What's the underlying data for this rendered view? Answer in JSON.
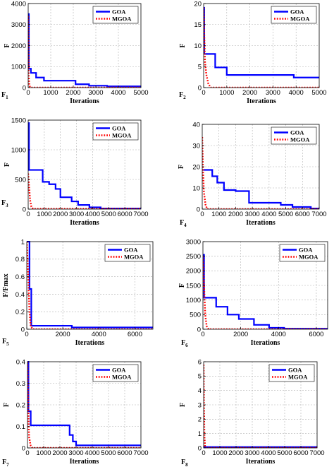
{
  "colors": {
    "goa": "#0000ff",
    "mgoa": "#ff0000"
  },
  "chart_data": [
    {
      "type": "line",
      "panel_label": "F",
      "panel_sub": "1",
      "xlabel": "Iterations",
      "ylabel": "F",
      "xlim": [
        0,
        5000
      ],
      "ylim": [
        0,
        4000
      ],
      "xticks": [
        0,
        1000,
        2000,
        3000,
        4000,
        5000
      ],
      "yticks": [
        0,
        1000,
        2000,
        3000,
        4000
      ],
      "grid": true,
      "legend_position": "top-right",
      "series": [
        {
          "name": "GOA",
          "style": "solid",
          "points": [
            [
              0,
              3500
            ],
            [
              30,
              3500
            ],
            [
              30,
              900
            ],
            [
              120,
              900
            ],
            [
              120,
              700
            ],
            [
              350,
              700
            ],
            [
              350,
              480
            ],
            [
              700,
              480
            ],
            [
              700,
              330
            ],
            [
              2100,
              330
            ],
            [
              2100,
              160
            ],
            [
              2700,
              160
            ],
            [
              2700,
              90
            ],
            [
              3500,
              90
            ],
            [
              3500,
              60
            ],
            [
              5000,
              60
            ]
          ]
        },
        {
          "name": "MGOA",
          "style": "dotted",
          "points": [
            [
              0,
              3400
            ],
            [
              20,
              600
            ],
            [
              50,
              150
            ],
            [
              80,
              30
            ],
            [
              120,
              0
            ],
            [
              5000,
              0
            ]
          ]
        }
      ]
    },
    {
      "type": "line",
      "panel_label": "F",
      "panel_sub": "2",
      "xlabel": "Iterations",
      "ylabel": "F",
      "xlim": [
        0,
        5000
      ],
      "ylim": [
        0,
        20
      ],
      "xticks": [
        0,
        1000,
        2000,
        3000,
        4000,
        5000
      ],
      "yticks": [
        0,
        5,
        10,
        15,
        20
      ],
      "grid": true,
      "legend_position": "top-right",
      "series": [
        {
          "name": "GOA",
          "style": "solid",
          "points": [
            [
              0,
              19
            ],
            [
              25,
              19
            ],
            [
              25,
              8
            ],
            [
              500,
              8
            ],
            [
              500,
              4.8
            ],
            [
              1000,
              4.8
            ],
            [
              1000,
              3
            ],
            [
              3900,
              3
            ],
            [
              3900,
              2.4
            ],
            [
              5000,
              2.4
            ]
          ]
        },
        {
          "name": "MGOA",
          "style": "dotted",
          "points": [
            [
              0,
              19
            ],
            [
              30,
              12
            ],
            [
              60,
              6
            ],
            [
              120,
              3
            ],
            [
              200,
              1
            ],
            [
              300,
              0
            ],
            [
              5000,
              0
            ]
          ]
        }
      ]
    },
    {
      "type": "line",
      "panel_label": "F",
      "panel_sub": "3",
      "xlabel": "Iterations",
      "ylabel": "F",
      "xlim": [
        0,
        7000
      ],
      "ylim": [
        0,
        1500
      ],
      "xticks": [
        0,
        1000,
        2000,
        3000,
        4000,
        5000,
        6000,
        7000
      ],
      "yticks": [
        0,
        500,
        1000,
        1500
      ],
      "grid": true,
      "legend_position": "top-right",
      "series": [
        {
          "name": "GOA",
          "style": "solid",
          "points": [
            [
              0,
              1450
            ],
            [
              50,
              1450
            ],
            [
              50,
              660
            ],
            [
              900,
              660
            ],
            [
              900,
              460
            ],
            [
              1300,
              460
            ],
            [
              1300,
              420
            ],
            [
              1700,
              420
            ],
            [
              1700,
              340
            ],
            [
              2000,
              340
            ],
            [
              2000,
              200
            ],
            [
              2700,
              200
            ],
            [
              2700,
              130
            ],
            [
              3100,
              130
            ],
            [
              3100,
              70
            ],
            [
              3800,
              70
            ],
            [
              3800,
              30
            ],
            [
              4500,
              30
            ],
            [
              4500,
              10
            ],
            [
              7000,
              10
            ]
          ]
        },
        {
          "name": "MGOA",
          "style": "dotted",
          "points": [
            [
              0,
              600
            ],
            [
              50,
              400
            ],
            [
              120,
              150
            ],
            [
              200,
              40
            ],
            [
              300,
              5
            ],
            [
              7000,
              5
            ]
          ]
        }
      ]
    },
    {
      "type": "line",
      "panel_label": "F",
      "panel_sub": "4",
      "xlabel": "Iterations",
      "ylabel": "F",
      "xlim": [
        0,
        7000
      ],
      "ylim": [
        0,
        40
      ],
      "xticks": [
        0,
        1000,
        2000,
        3000,
        4000,
        5000,
        6000,
        7000
      ],
      "yticks": [
        0,
        10,
        20,
        30,
        40
      ],
      "grid": true,
      "legend_position": "top-right",
      "series": [
        {
          "name": "GOA",
          "style": "solid",
          "points": [
            [
              0,
              18.5
            ],
            [
              600,
              18.5
            ],
            [
              600,
              15.5
            ],
            [
              900,
              15.5
            ],
            [
              900,
              12.5
            ],
            [
              1300,
              12.5
            ],
            [
              1300,
              9
            ],
            [
              2000,
              9
            ],
            [
              2000,
              8.5
            ],
            [
              2800,
              8.5
            ],
            [
              2800,
              3
            ],
            [
              4700,
              3
            ],
            [
              4700,
              2
            ],
            [
              5400,
              2
            ],
            [
              5400,
              1
            ],
            [
              6500,
              1
            ],
            [
              6500,
              0.3
            ],
            [
              7000,
              0.3
            ]
          ]
        },
        {
          "name": "MGOA",
          "style": "dotted",
          "points": [
            [
              0,
              34
            ],
            [
              40,
              20
            ],
            [
              100,
              8
            ],
            [
              200,
              2
            ],
            [
              300,
              0
            ],
            [
              7000,
              0
            ]
          ]
        }
      ]
    },
    {
      "type": "line",
      "panel_label": "F",
      "panel_sub": "5",
      "xlabel": "Iterations",
      "ylabel": "F/Fmax",
      "xlim": [
        0,
        7000
      ],
      "ylim": [
        0,
        1
      ],
      "xticks": [
        0,
        2000,
        4000,
        6000
      ],
      "yticks": [
        0,
        0.2,
        0.4,
        0.6,
        0.8,
        1
      ],
      "grid": true,
      "legend_position": "top-right",
      "series": [
        {
          "name": "GOA",
          "style": "solid",
          "points": [
            [
              0,
              1
            ],
            [
              150,
              1
            ],
            [
              150,
              0.46
            ],
            [
              250,
              0.46
            ],
            [
              250,
              0.04
            ],
            [
              2500,
              0.04
            ],
            [
              2500,
              0.02
            ],
            [
              7000,
              0.02
            ]
          ]
        },
        {
          "name": "MGOA",
          "style": "dotted",
          "points": [
            [
              0,
              1
            ],
            [
              80,
              0.6
            ],
            [
              150,
              0.2
            ],
            [
              220,
              0.03
            ],
            [
              350,
              0
            ],
            [
              7000,
              0
            ]
          ]
        }
      ]
    },
    {
      "type": "line",
      "panel_label": "F",
      "panel_sub": "6",
      "xlabel": "Iterations",
      "ylabel": "F",
      "xlim": [
        0,
        6600
      ],
      "ylim": [
        0,
        3000
      ],
      "xticks": [
        0,
        2000,
        4000,
        6000
      ],
      "yticks": [
        0,
        500,
        1000,
        1500,
        2000,
        2500,
        3000
      ],
      "grid": true,
      "legend_position": "top-right",
      "series": [
        {
          "name": "GOA",
          "style": "solid",
          "points": [
            [
              0,
              2550
            ],
            [
              60,
              2550
            ],
            [
              60,
              1080
            ],
            [
              700,
              1080
            ],
            [
              700,
              770
            ],
            [
              1300,
              770
            ],
            [
              1300,
              500
            ],
            [
              1900,
              500
            ],
            [
              1900,
              350
            ],
            [
              2700,
              350
            ],
            [
              2700,
              150
            ],
            [
              3500,
              150
            ],
            [
              3500,
              50
            ],
            [
              4300,
              50
            ],
            [
              4300,
              20
            ],
            [
              6600,
              20
            ]
          ]
        },
        {
          "name": "MGOA",
          "style": "dotted",
          "points": [
            [
              0,
              2500
            ],
            [
              60,
              1500
            ],
            [
              120,
              500
            ],
            [
              200,
              100
            ],
            [
              300,
              0
            ],
            [
              6600,
              0
            ]
          ]
        }
      ]
    },
    {
      "type": "line",
      "panel_label": "F",
      "panel_sub": "7",
      "xlabel": "Iterations",
      "ylabel": "F",
      "xlim": [
        0,
        7000
      ],
      "ylim": [
        0,
        0.4
      ],
      "xticks": [
        0,
        1000,
        2000,
        3000,
        4000,
        5000,
        6000,
        7000
      ],
      "yticks": [
        0,
        0.1,
        0.2,
        0.3,
        0.4
      ],
      "grid": true,
      "legend_position": "top-right",
      "series": [
        {
          "name": "GOA",
          "style": "solid",
          "points": [
            [
              0,
              0.4
            ],
            [
              60,
              0.4
            ],
            [
              60,
              0.17
            ],
            [
              200,
              0.17
            ],
            [
              200,
              0.105
            ],
            [
              2600,
              0.105
            ],
            [
              2600,
              0.06
            ],
            [
              2800,
              0.06
            ],
            [
              2800,
              0.03
            ],
            [
              3000,
              0.03
            ],
            [
              3000,
              0.012
            ],
            [
              7000,
              0.012
            ]
          ]
        },
        {
          "name": "MGOA",
          "style": "dotted",
          "points": [
            [
              0,
              0.4
            ],
            [
              40,
              0.2
            ],
            [
              100,
              0.05
            ],
            [
              200,
              0.01
            ],
            [
              300,
              0
            ],
            [
              7000,
              0
            ]
          ]
        }
      ]
    },
    {
      "type": "line",
      "panel_label": "F",
      "panel_sub": "8",
      "xlabel": "Iterations",
      "ylabel": "F",
      "xlim": [
        0,
        7000
      ],
      "ylim": [
        0,
        6
      ],
      "xticks": [
        0,
        1000,
        2000,
        3000,
        4000,
        5000,
        6000,
        7000
      ],
      "yticks": [
        0,
        1,
        2,
        3,
        4,
        5,
        6
      ],
      "grid": true,
      "legend_position": "top-right",
      "series": [
        {
          "name": "GOA",
          "style": "solid",
          "points": [
            [
              0,
              0.06
            ],
            [
              7000,
              0.06
            ]
          ]
        },
        {
          "name": "MGOA",
          "style": "dotted",
          "points": [
            [
              0,
              5.8
            ],
            [
              20,
              3
            ],
            [
              50,
              0.8
            ],
            [
              90,
              0.05
            ],
            [
              150,
              0
            ],
            [
              7000,
              0
            ]
          ]
        }
      ]
    }
  ]
}
